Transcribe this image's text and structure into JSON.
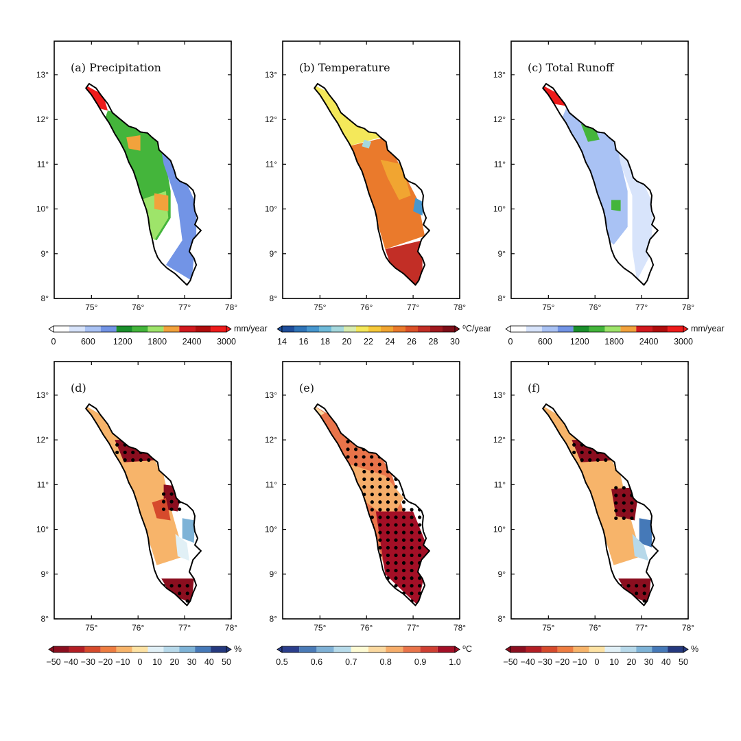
{
  "figure": {
    "axes": {
      "lat_ticks": [
        "8°",
        "9°",
        "10°",
        "11°",
        "12°",
        "13°"
      ],
      "lon_ticks": [
        "75°",
        "76°",
        "77°",
        "78°"
      ]
    },
    "panels": [
      {
        "id": "a",
        "title": "(a) Precipitation",
        "colorbar": "precip",
        "field": "precip"
      },
      {
        "id": "b",
        "title": "(b) Temperature",
        "colorbar": "temp",
        "field": "temp"
      },
      {
        "id": "c",
        "title": "(c) Total Runoff",
        "colorbar": "runoff",
        "field": "runoff"
      },
      {
        "id": "d",
        "title": "(d)",
        "colorbar": "pct",
        "field": "pchange_precip",
        "stippled": true
      },
      {
        "id": "e",
        "title": "(e)",
        "colorbar": "degc",
        "field": "change_temp",
        "stippled": true
      },
      {
        "id": "f",
        "title": "(f)",
        "colorbar": "pct",
        "field": "pchange_runoff",
        "stippled": true
      }
    ],
    "colorbars": {
      "precip": {
        "unit": "mm/year",
        "labels": [
          "0",
          "600",
          "1200",
          "1800",
          "2400",
          "3000"
        ],
        "colors": [
          "#ffffff",
          "#d8e4fb",
          "#a9c2f4",
          "#7294e6",
          "#1a8f2c",
          "#44b53b",
          "#9ee46a",
          "#f2a23c",
          "#d2191e",
          "#b00c0c",
          "#ee1b1b"
        ]
      },
      "temp": {
        "unit": "⁰C/year",
        "labels": [
          "14",
          "16",
          "18",
          "20",
          "22",
          "24",
          "26",
          "28",
          "30"
        ],
        "colors": [
          "#1f4e9b",
          "#2f74b8",
          "#4797cf",
          "#6ebad9",
          "#a5d8dd",
          "#d8ecb0",
          "#f4e85a",
          "#f6c93a",
          "#f1a531",
          "#ea7a2c",
          "#db5128",
          "#c22e26",
          "#a0191f",
          "#7d0e18"
        ]
      },
      "runoff": {
        "unit": "mm/year",
        "labels": [
          "0",
          "600",
          "1200",
          "1800",
          "2400",
          "3000"
        ],
        "colors": [
          "#ffffff",
          "#d8e4fb",
          "#a9c2f4",
          "#7294e6",
          "#1a8f2c",
          "#44b53b",
          "#9ee46a",
          "#f2a23c",
          "#d2191e",
          "#b00c0c",
          "#ee1b1b"
        ]
      },
      "pct": {
        "unit": "%",
        "labels": [
          "−50",
          "−40",
          "−30",
          "−20",
          "−10",
          "0",
          "10",
          "20",
          "30",
          "40",
          "50"
        ],
        "colors": [
          "#8b0e1f",
          "#b31e24",
          "#d64a2c",
          "#ee7d41",
          "#f7b46a",
          "#fde2a3",
          "#e1f0f6",
          "#b7d9ea",
          "#7eb3d7",
          "#4579b8",
          "#25397f"
        ]
      },
      "degc": {
        "unit": "⁰C",
        "labels": [
          "0.5",
          "0.6",
          "0.7",
          "0.8",
          "0.9",
          "1.0"
        ],
        "colors": [
          "#2b3e8c",
          "#4a7bb7",
          "#7fb1d6",
          "#b7dbea",
          "#fdfbd4",
          "#fbd9a0",
          "#f6ad6a",
          "#e9744a",
          "#cf3f32",
          "#a30f26"
        ]
      }
    }
  }
}
